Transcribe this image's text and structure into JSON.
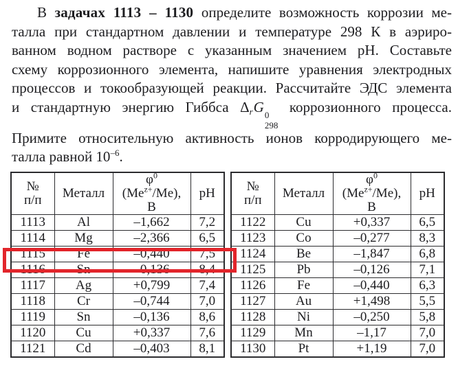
{
  "page": {
    "background": "#ffffff",
    "text_color": "#1d1d20",
    "highlight_color": "#e2252b",
    "border_color": "#2b2b2e"
  },
  "intro": {
    "line1": {
      "pre": "В ",
      "bold": "задачах 1113 – 1130",
      "post": " определите возможность коррозии ме-"
    },
    "line2": "талла при стандартном давлении и температуре 298 К в аэриро-",
    "line3": "ванном водном растворе с указанным значением pH. Составьте",
    "line4": "схему коррозионного элемента, напишите уравнения электродных",
    "line5": "процессов и токообразующей реакции. Рассчитайте ЭДС элемента",
    "line6": {
      "pre": "и стандартную энергию Гиббса ",
      "formula": {
        "delta": "Δ",
        "sub_r": "r",
        "g": "G",
        "sup": "0",
        "sub": "298"
      },
      "post": " коррозионного процесса."
    },
    "line7": "Примите относительную активность ионов корродирующего ме-",
    "line8": {
      "pre": "талла равной 10",
      "sup": "–6",
      "post": "."
    }
  },
  "table": {
    "header": {
      "num_line1": "№",
      "num_line2": "п/п",
      "metal": "Металл",
      "phi_base": "φ",
      "phi_sup": "0",
      "phi_l2a": "(Me",
      "phi_l2sup": "z+",
      "phi_l2b": "/Me),",
      "phi_l3": "В",
      "ph": "pH"
    },
    "left_rows": [
      [
        "1113",
        "Al",
        "–1,662",
        "7,2"
      ],
      [
        "1114",
        "Mg",
        "–2,366",
        "6,5"
      ],
      [
        "1115",
        "Fe",
        "–0,440",
        "7,5"
      ],
      [
        "1116",
        "Sn",
        "–0,136",
        "8,4"
      ],
      [
        "1117",
        "Ag",
        "+0,799",
        "7,4"
      ],
      [
        "1118",
        "Cr",
        "–0,744",
        "7,0"
      ],
      [
        "1119",
        "Sn",
        "–0,136",
        "8,6"
      ],
      [
        "1120",
        "Cu",
        "+0,337",
        "7,6"
      ],
      [
        "1121",
        "Cd",
        "–0,403",
        "8,1"
      ]
    ],
    "right_rows": [
      [
        "1122",
        "Cu",
        "+0,337",
        "6,5"
      ],
      [
        "1123",
        "Co",
        "–0,277",
        "8,3"
      ],
      [
        "1124",
        "Be",
        "–1,847",
        "6,8"
      ],
      [
        "1125",
        "Pb",
        "–0,126",
        "7,1"
      ],
      [
        "1126",
        "Fe",
        "–0,440",
        "6,3"
      ],
      [
        "1127",
        "Au",
        "+1,498",
        "5,5"
      ],
      [
        "1128",
        "Ni",
        "–0,250",
        "5,8"
      ],
      [
        "1129",
        "Mn",
        "–1,17",
        "7,0"
      ],
      [
        "1130",
        "Pt",
        "+1,19",
        "7,0"
      ]
    ],
    "highlighted_row": "1116"
  }
}
